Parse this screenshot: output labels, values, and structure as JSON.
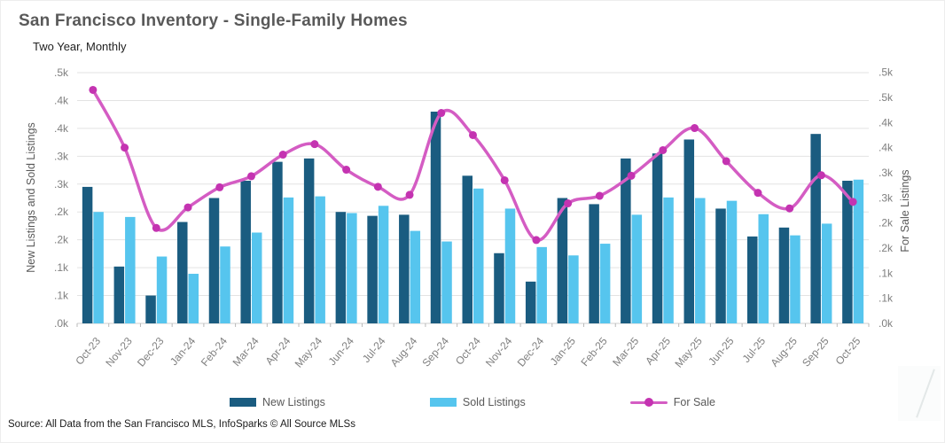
{
  "header": {
    "title": "San Francisco Inventory - Single-Family Homes",
    "subtitle": "Two Year, Monthly"
  },
  "source": "Source: All Data from the San Francisco MLS, InfoSparks © All Source MLSs",
  "legend": [
    {
      "label": "New Listings",
      "color": "#1a5c80",
      "type": "bar"
    },
    {
      "label": "Sold Listings",
      "color": "#56c5ee",
      "type": "bar"
    },
    {
      "label": "For Sale",
      "color": "#d45cc3",
      "marker_color": "#c433b1",
      "type": "line"
    }
  ],
  "colors": {
    "new_listings": "#1a5c80",
    "sold_listings": "#56c5ee",
    "for_sale_line": "#d45cc3",
    "for_sale_marker": "#c433b1",
    "gridline": "#e3e3e3",
    "axis_line": "#cfcfcf",
    "tick_label": "#7f7f7f",
    "axis_title": "#595959"
  },
  "chart_data": {
    "type": "bar",
    "subtype": "grouped bars with overlaid smooth line on secondary axis",
    "title": "San Francisco Inventory - Single-Family Homes",
    "subtitle": "Two Year, Monthly",
    "categories": [
      "Oct-23",
      "Nov-23",
      "Dec-23",
      "Jan-24",
      "Feb-24",
      "Mar-24",
      "Apr-24",
      "May-24",
      "Jun-24",
      "Jul-24",
      "Aug-24",
      "Sep-24",
      "Oct-24",
      "Nov-24",
      "Dec-24",
      "Jan-25",
      "Feb-25",
      "Mar-25",
      "Apr-25",
      "May-25",
      "Jun-25",
      "Jul-25",
      "Aug-25",
      "Sep-25",
      "Oct-25"
    ],
    "series": [
      {
        "name": "New Listings",
        "type": "bar",
        "axis": "left",
        "values": [
          245,
          102,
          50,
          182,
          225,
          256,
          290,
          296,
          200,
          193,
          195,
          380,
          265,
          126,
          75,
          225,
          214,
          296,
          305,
          330,
          206,
          156,
          172,
          340,
          256
        ]
      },
      {
        "name": "Sold Listings",
        "type": "bar",
        "axis": "left",
        "values": [
          200,
          191,
          120,
          89,
          138,
          163,
          226,
          228,
          198,
          211,
          166,
          147,
          242,
          206,
          137,
          122,
          143,
          195,
          226,
          225,
          220,
          196,
          158,
          179,
          258
        ]
      },
      {
        "name": "For Sale",
        "type": "line",
        "axis": "right",
        "values": [
          465,
          350,
          190,
          231,
          271,
          293,
          336,
          357,
          306,
          272,
          256,
          419,
          375,
          285,
          166,
          239,
          254,
          294,
          345,
          389,
          323,
          260,
          229,
          295,
          242
        ]
      }
    ],
    "left_axis": {
      "title": "New Listings and Sold Listings",
      "min": 0,
      "max": 450,
      "tick_step": 50,
      "tick_labels": [
        ".0k",
        ".1k",
        ".1k",
        ".2k",
        ".2k",
        ".3k",
        ".3k",
        ".4k",
        ".4k",
        ".5k"
      ]
    },
    "right_axis": {
      "title": "For Sale Listings",
      "min": 0,
      "max": 500,
      "tick_step": 50,
      "tick_labels": [
        ".0k",
        ".1k",
        ".1k",
        ".2k",
        ".2k",
        ".3k",
        ".3k",
        ".4k",
        ".4k",
        ".5k",
        ".5k"
      ]
    },
    "grid": true,
    "legend_position": "bottom"
  }
}
